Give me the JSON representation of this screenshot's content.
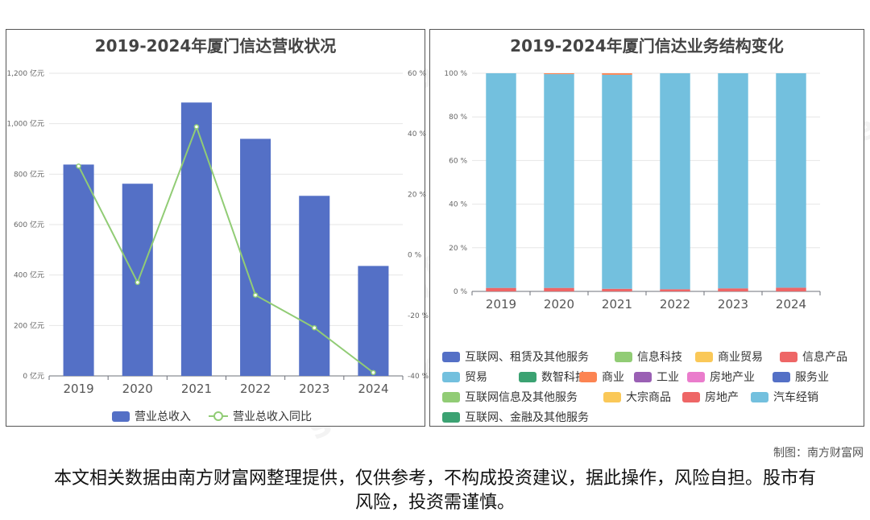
{
  "chart_data": [
    {
      "type": "bar",
      "title": "2019-2024年厦门信达营收状况",
      "categories": [
        "2019",
        "2020",
        "2021",
        "2022",
        "2023",
        "2024"
      ],
      "series": [
        {
          "name": "营业总收入",
          "type": "bar",
          "axis": "left",
          "color": "#5470c6",
          "values": [
            838,
            762,
            1084,
            940,
            714,
            436
          ]
        },
        {
          "name": "营业总收入同比",
          "type": "line",
          "axis": "right",
          "color": "#91cc75",
          "values": [
            29.3,
            -9.1,
            42.3,
            -13.3,
            -24.1,
            -38.9
          ]
        }
      ],
      "left_axis": {
        "ylim": [
          0,
          1200
        ],
        "ticks": [
          "0 亿元",
          "200 亿元",
          "400 亿元",
          "600 亿元",
          "800 亿元",
          "1,000 亿元",
          "1,200 亿元"
        ]
      },
      "right_axis": {
        "ylim": [
          -40,
          60
        ],
        "ticks": [
          "-40 %",
          "-20 %",
          "0 %",
          "20 %",
          "40 %",
          "60 %"
        ]
      },
      "legend_position": "bottom"
    },
    {
      "type": "bar",
      "stacked": true,
      "title": "2019-2024年厦门信达业务结构变化",
      "categories": [
        "2019",
        "2020",
        "2021",
        "2022",
        "2023",
        "2024"
      ],
      "ylim": [
        0,
        100
      ],
      "ticks": [
        "0 %",
        "20 %",
        "40 %",
        "60 %",
        "80 %",
        "100 %"
      ],
      "series": [
        {
          "name": "房地产",
          "color": "#ee6666",
          "values": [
            1.6,
            1.6,
            1.2,
            1.0,
            1.4,
            1.7
          ]
        },
        {
          "name": "汽车经销",
          "color": "#73c0de",
          "values": [
            98.4,
            98.0,
            98.1,
            99.0,
            98.6,
            98.3
          ]
        },
        {
          "name": "商业",
          "color": "#fc8452",
          "values": [
            0,
            0.4,
            0.7,
            0,
            0,
            0
          ]
        }
      ],
      "legend": [
        {
          "name": "互联网、租赁及其他服务",
          "color": "#5470c6"
        },
        {
          "name": "信息科技",
          "color": "#91cc75"
        },
        {
          "name": "商业贸易",
          "color": "#fac858"
        },
        {
          "name": "信息产品",
          "color": "#ee6666"
        },
        {
          "name": "贸易",
          "color": "#73c0de"
        },
        {
          "name": "数智科技",
          "color": "#3ba272"
        },
        {
          "name": "商业",
          "color": "#fc8452"
        },
        {
          "name": "工业",
          "color": "#9a60b4"
        },
        {
          "name": "房地产业",
          "color": "#ea7ccc"
        },
        {
          "name": "服务业",
          "color": "#5470c6"
        },
        {
          "name": "互联网信息及其他服务",
          "color": "#91cc75"
        },
        {
          "name": "大宗商品",
          "color": "#fac858"
        },
        {
          "name": "房地产",
          "color": "#ee6666"
        },
        {
          "name": "汽车经销",
          "color": "#73c0de"
        },
        {
          "name": "互联网、金融及其他服务",
          "color": "#3ba272"
        }
      ],
      "legend_position": "bottom"
    }
  ],
  "credit": "制图：南方财富网",
  "disclaimer": "本文相关数据由南方财富网整理提供，仅供参考，不构成投资建议，据此操作，风险自担。股市有风险，投资需谨慎。",
  "watermark": {
    "cn": "南方财富网",
    "en": "southmoney.com"
  }
}
